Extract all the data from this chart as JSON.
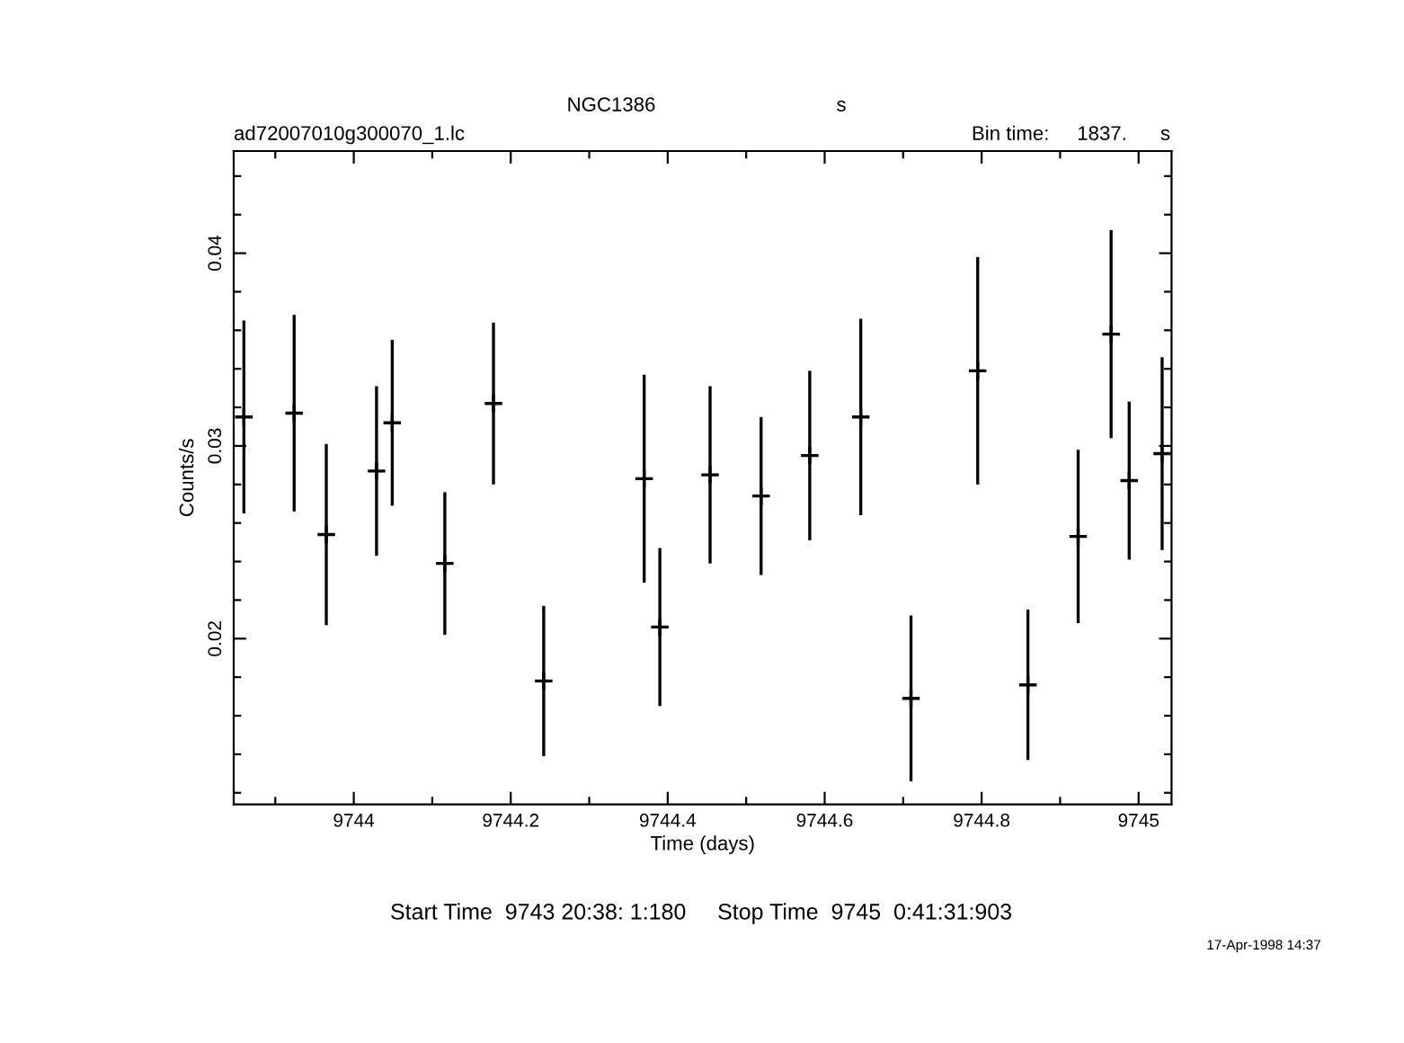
{
  "chart_data": {
    "type": "scatter",
    "title": "NGC1386",
    "xlabel": "Time (days)",
    "ylabel": "Counts/s",
    "annotations": [
      "s",
      "ad72007010g300070_1.lc",
      "Bin time:     1837.      s",
      "Start Time  9743 20:38: 1:180     Stop Time  9745  0:41:31:903",
      "17-Apr-1998 14:37"
    ],
    "x": [
      9743.86,
      9743.924,
      9743.965,
      9744.029,
      9744.049,
      9744.116,
      9744.178,
      9744.242,
      9744.37,
      9744.39,
      9744.454,
      9744.519,
      9744.581,
      9744.646,
      9744.71,
      9744.795,
      9744.859,
      9744.923,
      9744.965,
      9744.988,
      9745.03
    ],
    "series": [
      {
        "color": "#000000",
        "values": [
          0.0315,
          0.0317,
          0.0254,
          0.0287,
          0.0312,
          0.0239,
          0.0322,
          0.0178,
          0.0283,
          0.0206,
          0.0285,
          0.0274,
          0.0295,
          0.0315,
          0.0169,
          0.0339,
          0.0176,
          0.0253,
          0.0358,
          0.0282,
          0.0296
        ],
        "errors": [
          0.005,
          0.0051,
          0.0047,
          0.0044,
          0.0043,
          0.0037,
          0.0042,
          0.0039,
          0.0054,
          0.0041,
          0.0046,
          0.0041,
          0.0044,
          0.0051,
          0.0043,
          0.0059,
          0.0039,
          0.0045,
          0.0054,
          0.0041,
          0.005
        ],
        "marker": "cross"
      }
    ],
    "grid": false,
    "legend": false,
    "xlim": [
      9743.847,
      9745.042
    ],
    "ylim": [
      0.0114,
      0.0453
    ],
    "xticks": [
      {
        "value": 9743.9,
        "label": null
      },
      9744,
      {
        "value": 9744.1,
        "label": null
      },
      9744.2,
      {
        "value": 9744.3,
        "label": null
      },
      9744.4,
      {
        "value": 9744.5,
        "label": null
      },
      9744.6,
      {
        "value": 9744.7,
        "label": null
      },
      9744.8,
      {
        "value": 9744.9,
        "label": null
      },
      9745
    ],
    "yticks": [
      {
        "value": 0.012,
        "label": null
      },
      {
        "value": 0.014,
        "label": null
      },
      {
        "value": 0.016,
        "label": null
      },
      {
        "value": 0.018,
        "label": null
      },
      0.02,
      {
        "value": 0.022,
        "label": null
      },
      {
        "value": 0.024,
        "label": null
      },
      {
        "value": 0.026,
        "label": null
      },
      {
        "value": 0.028,
        "label": null
      },
      0.03,
      {
        "value": 0.032,
        "label": null
      },
      {
        "value": 0.034,
        "label": null
      },
      {
        "value": 0.036,
        "label": null
      },
      {
        "value": 0.038,
        "label": null
      },
      0.04,
      {
        "value": 0.042,
        "label": null
      },
      {
        "value": 0.044,
        "label": null
      }
    ]
  }
}
